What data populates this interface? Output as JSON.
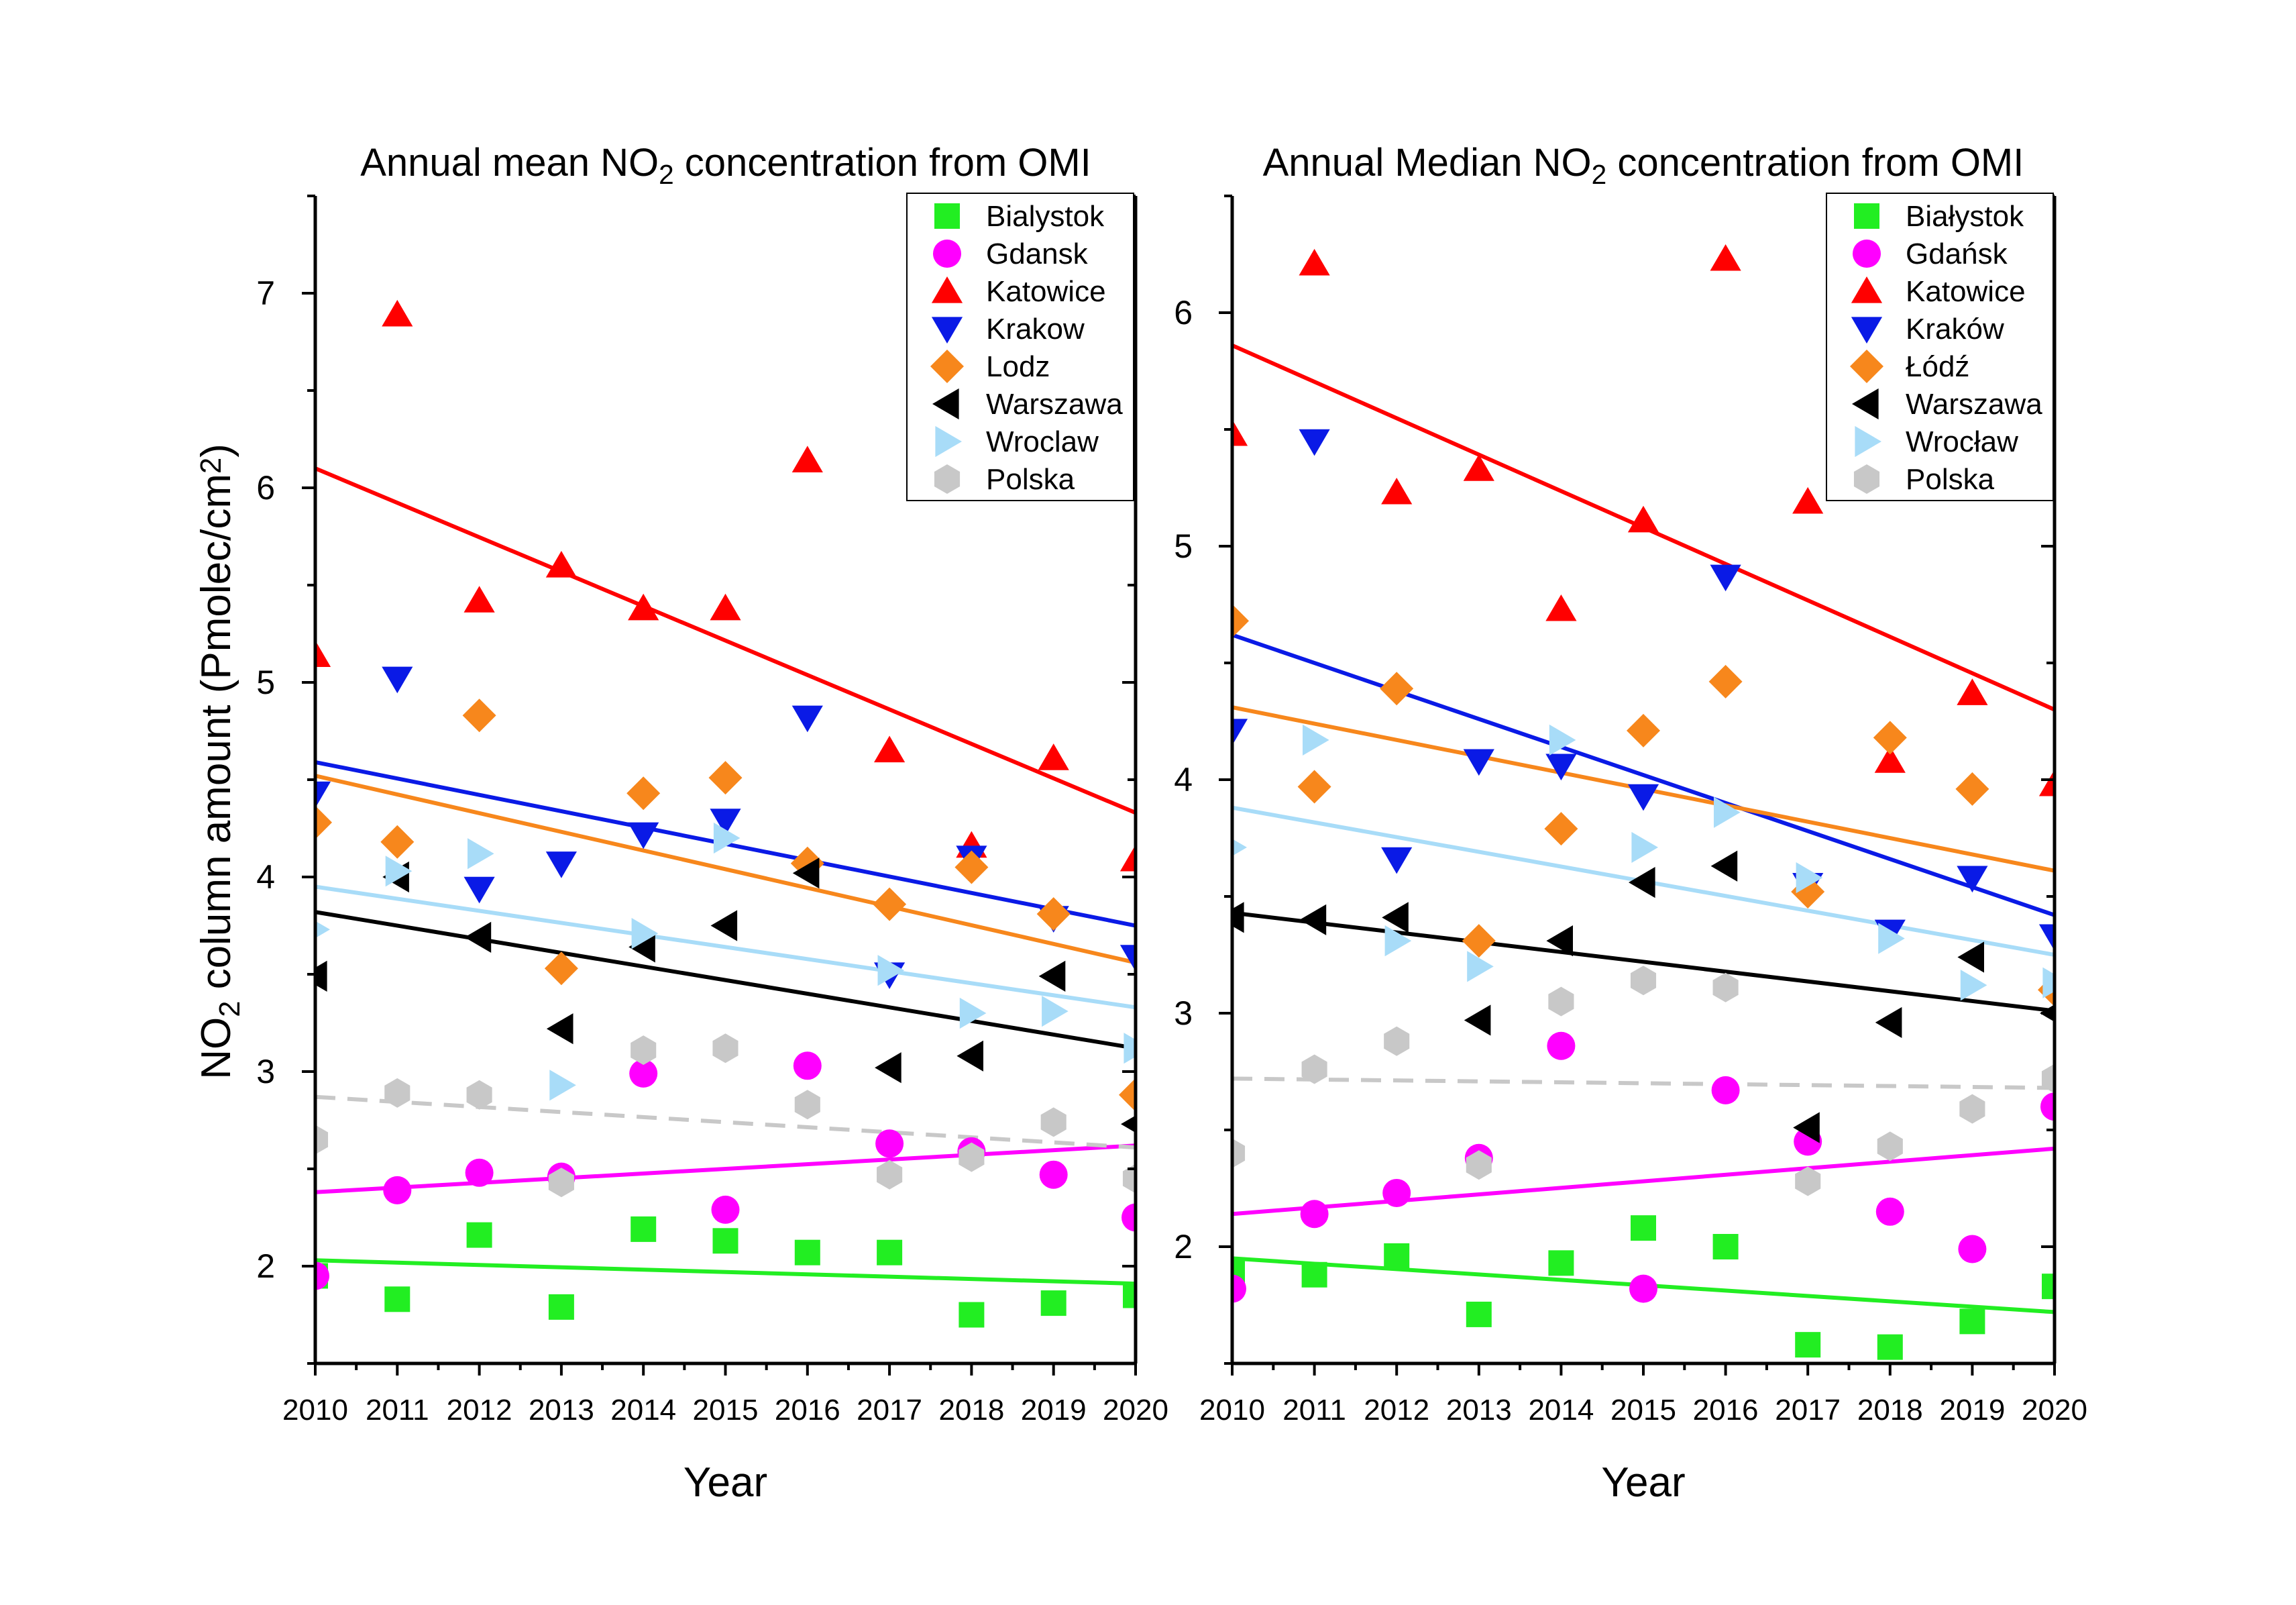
{
  "figure": {
    "shared_ylabel": "NO2 column amount (Pmolec/cm2)",
    "shared_ylabel_parts": {
      "pre": "NO",
      "sub": "2",
      "mid": " column amount (Pmolec/cm",
      "sup": "2",
      "post": ")"
    }
  },
  "chart_data": [
    {
      "type": "scatter",
      "title": "Annual mean NO2 concentration from OMI",
      "title_parts": {
        "pre": "Annual mean NO",
        "sub": "2",
        "post": " concentration from OMI"
      },
      "xlabel": "Year",
      "ylabel": "NO2 column amount (Pmolec/cm2)",
      "x": [
        2010,
        2011,
        2012,
        2013,
        2014,
        2015,
        2016,
        2017,
        2018,
        2019,
        2020
      ],
      "xlim": [
        2010,
        2020
      ],
      "ylim": [
        1.5,
        7.5
      ],
      "yticks": [
        2,
        3,
        4,
        5,
        6,
        7
      ],
      "legend_position": "top-right",
      "series": [
        {
          "name": "Bialystok",
          "marker": "square",
          "color": "#22ee22",
          "values": [
            1.95,
            1.83,
            2.16,
            1.79,
            2.19,
            2.13,
            2.07,
            2.07,
            1.75,
            1.81,
            1.85
          ],
          "trend": [
            2.03,
            1.91
          ],
          "trend_style": "solid"
        },
        {
          "name": "Gdansk",
          "marker": "circle",
          "color": "#ff00ff",
          "values": [
            1.95,
            2.39,
            2.48,
            2.46,
            2.99,
            2.29,
            3.03,
            2.63,
            2.59,
            2.47,
            2.25
          ],
          "trend": [
            2.38,
            2.62
          ],
          "trend_style": "solid"
        },
        {
          "name": "Katowice",
          "marker": "triangle-up",
          "color": "#ff0000",
          "values": [
            5.14,
            6.89,
            5.42,
            5.6,
            5.38,
            5.38,
            6.14,
            4.65,
            4.16,
            4.61,
            4.09
          ],
          "trend": [
            6.1,
            4.33
          ],
          "trend_style": "solid"
        },
        {
          "name": "Krakow",
          "marker": "triangle-down",
          "color": "#0a1ae6",
          "values": [
            4.43,
            5.02,
            3.94,
            4.07,
            4.22,
            4.29,
            4.82,
            3.5,
            4.1,
            3.79,
            3.59
          ],
          "trend": [
            4.59,
            3.75
          ],
          "trend_style": "solid"
        },
        {
          "name": "Lodz",
          "marker": "diamond",
          "color": "#f7871c",
          "values": [
            4.28,
            4.18,
            4.83,
            3.53,
            4.43,
            4.51,
            4.07,
            3.86,
            4.05,
            3.81,
            2.88
          ],
          "trend": [
            4.52,
            3.56
          ],
          "trend_style": "solid"
        },
        {
          "name": "Warszawa",
          "marker": "triangle-left",
          "color": "#000000",
          "values": [
            3.49,
            4.0,
            3.69,
            3.22,
            3.64,
            3.75,
            4.02,
            3.02,
            3.08,
            3.49,
            2.73
          ],
          "trend": [
            3.82,
            3.12
          ],
          "trend_style": "solid"
        },
        {
          "name": "Wroclaw",
          "marker": "triangle-right",
          "color": "#a8dcf8",
          "values": [
            3.73,
            4.03,
            4.12,
            2.93,
            3.71,
            4.2,
            null,
            3.52,
            3.3,
            3.31,
            3.12
          ],
          "trend": [
            3.95,
            3.33
          ],
          "trend_style": "solid"
        },
        {
          "name": "Polska",
          "marker": "hexagon",
          "color": "#c8c8c8",
          "values": [
            2.65,
            2.89,
            2.88,
            2.43,
            3.11,
            3.12,
            2.83,
            2.47,
            2.56,
            2.74,
            2.45
          ],
          "trend": [
            2.87,
            2.61
          ],
          "trend_style": "dashed"
        }
      ]
    },
    {
      "type": "scatter",
      "title": "Annual Median NO2 concentration from OMI",
      "title_parts": {
        "pre": "Annual Median NO",
        "sub": "2",
        "post": " concentration from OMI"
      },
      "xlabel": "Year",
      "ylabel": "NO2 column amount (Pmolec/cm2)",
      "x": [
        2010,
        2011,
        2012,
        2013,
        2014,
        2015,
        2016,
        2017,
        2018,
        2019,
        2020
      ],
      "xlim": [
        2010,
        2020
      ],
      "ylim": [
        1.5,
        6.5
      ],
      "yticks": [
        2,
        3,
        4,
        5,
        6
      ],
      "legend_position": "top-right",
      "series": [
        {
          "name": "Białystok",
          "marker": "square",
          "color": "#22ee22",
          "values": [
            1.9,
            1.88,
            1.96,
            1.71,
            1.93,
            2.08,
            2.0,
            1.58,
            1.57,
            1.68,
            1.83
          ],
          "trend": [
            1.95,
            1.72
          ],
          "trend_style": "solid"
        },
        {
          "name": "Gdańsk",
          "marker": "circle",
          "color": "#ff00ff",
          "values": [
            1.82,
            2.14,
            2.23,
            2.38,
            2.86,
            1.82,
            2.67,
            2.45,
            2.15,
            1.99,
            2.6
          ],
          "trend": [
            2.14,
            2.42
          ],
          "trend_style": "solid"
        },
        {
          "name": "Katowice",
          "marker": "triangle-up",
          "color": "#ff0000",
          "values": [
            5.48,
            6.21,
            5.23,
            5.33,
            4.73,
            5.11,
            6.23,
            5.19,
            4.08,
            4.37,
            3.98
          ],
          "trend": [
            5.86,
            4.3
          ],
          "trend_style": "solid"
        },
        {
          "name": "Kraków",
          "marker": "triangle-down",
          "color": "#0a1ae6",
          "values": [
            4.21,
            5.45,
            3.66,
            4.08,
            4.06,
            3.93,
            4.87,
            3.55,
            3.35,
            3.58,
            3.33
          ],
          "trend": [
            4.62,
            3.42
          ],
          "trend_style": "solid"
        },
        {
          "name": "Łódź",
          "marker": "diamond",
          "color": "#f7871c",
          "values": [
            4.68,
            3.97,
            4.39,
            3.31,
            3.79,
            4.21,
            4.42,
            3.52,
            4.18,
            3.96,
            3.1
          ],
          "trend": [
            4.31,
            3.61
          ],
          "trend_style": "solid"
        },
        {
          "name": "Warszawa",
          "marker": "triangle-left",
          "color": "#000000",
          "values": [
            3.41,
            3.4,
            3.41,
            2.97,
            3.31,
            3.56,
            3.63,
            2.51,
            2.96,
            3.24,
            3.0
          ],
          "trend": [
            3.43,
            3.01
          ],
          "trend_style": "solid"
        },
        {
          "name": "Wrocław",
          "marker": "triangle-right",
          "color": "#a8dcf8",
          "values": [
            3.71,
            4.17,
            3.31,
            3.2,
            4.17,
            3.71,
            3.86,
            3.58,
            3.32,
            3.12,
            3.13
          ],
          "trend": [
            3.88,
            3.25
          ],
          "trend_style": "solid"
        },
        {
          "name": "Polska",
          "marker": "hexagon",
          "color": "#c8c8c8",
          "values": [
            2.4,
            2.76,
            2.88,
            2.35,
            3.05,
            3.14,
            3.11,
            2.28,
            2.43,
            2.59,
            2.72
          ],
          "trend": [
            2.72,
            2.68
          ],
          "trend_style": "dashed"
        }
      ]
    }
  ]
}
